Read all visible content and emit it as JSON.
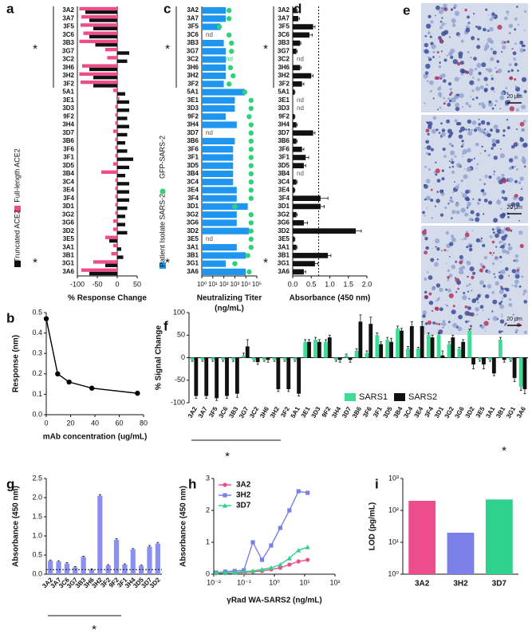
{
  "chart_data": [
    {
      "type": "bar",
      "panel": "a",
      "orientation": "horizontal",
      "categories": [
        "3A2",
        "3A7",
        "3F5",
        "3C6",
        "3B3",
        "3G7",
        "3C2",
        "3H6",
        "3H2",
        "3F2",
        "5A1",
        "3E1",
        "3D3",
        "9F2",
        "3H4",
        "3D7",
        "3B6",
        "3F6",
        "3F1",
        "3D5",
        "3B4",
        "3C4",
        "3E4",
        "3F4",
        "3D1",
        "3G2",
        "3G6",
        "3D2",
        "3E5",
        "3A1",
        "3B1",
        "3G1",
        "3A6"
      ],
      "series": [
        {
          "name": "Full-length ACE2",
          "color": "#ee4d8c",
          "values": [
            -95,
            -90,
            -92,
            -85,
            -95,
            -30,
            -25,
            -88,
            -95,
            -92,
            -10,
            5,
            -5,
            -5,
            -5,
            -10,
            -5,
            -5,
            -5,
            -10,
            -40,
            -5,
            -5,
            -5,
            -5,
            -5,
            -10,
            -10,
            -30,
            -10,
            -15,
            -60,
            -90
          ]
        },
        {
          "name": "Truncated ACE2",
          "color": "#111111",
          "values": [
            -80,
            -70,
            -60,
            -70,
            -55,
            30,
            25,
            -70,
            -60,
            -60,
            20,
            30,
            30,
            25,
            30,
            25,
            20,
            25,
            40,
            30,
            20,
            30,
            30,
            30,
            25,
            20,
            20,
            25,
            -20,
            10,
            15,
            -30,
            -70
          ]
        }
      ],
      "xlim": [
        -100,
        50
      ],
      "xticks": [
        -100,
        -50,
        0,
        50
      ],
      "x_label": "% Response Change",
      "legend": "left",
      "annotations": [
        "*",
        "*"
      ]
    },
    {
      "type": "bar",
      "panel": "c",
      "orientation": "horizontal",
      "x_log": true,
      "categories": [
        "3A2",
        "3A7",
        "3F5",
        "3C6",
        "3B3",
        "3G7",
        "3C2",
        "3H6",
        "3H2",
        "3F2",
        "5A1",
        "3E1",
        "3D3",
        "9F2",
        "3H4",
        "3D7",
        "3B6",
        "3F6",
        "3F1",
        "3D5",
        "3B4",
        "3C4",
        "3E4",
        "3F4",
        "3D1",
        "3G2",
        "3G6",
        "3D2",
        "3E5",
        "3A1",
        "3B1",
        "3G1",
        "3A6"
      ],
      "series": [
        {
          "name": "Patient Isolate SARS-2",
          "color": "#1e96f0",
          "values": [
            150,
            150,
            50,
            null,
            100,
            150,
            150,
            150,
            150,
            100,
            8000,
            1000,
            1000,
            150,
            1500,
            null,
            1000,
            700,
            700,
            700,
            700,
            700,
            1500,
            1500,
            15000,
            1500,
            1500,
            20000,
            null,
            1500,
            10000,
            150,
            10000
          ],
          "value_labels": [
            null,
            null,
            null,
            "nd",
            null,
            null,
            null,
            null,
            null,
            null,
            null,
            null,
            null,
            null,
            null,
            "nd",
            null,
            null,
            null,
            null,
            null,
            null,
            null,
            null,
            null,
            null,
            null,
            null,
            "nd",
            null,
            null,
            null,
            null
          ]
        },
        {
          "name": "GFP-SARS-2",
          "color": "#2ed27a",
          "marker": "dot",
          "values": [
            300,
            300,
            40,
            300,
            500,
            500,
            null,
            400,
            700,
            300,
            8000,
            30000,
            30000,
            20000,
            30000,
            30000,
            30000,
            30000,
            30000,
            30000,
            30000,
            30000,
            30000,
            30000,
            1000,
            30000,
            30000,
            30000,
            30000,
            30000,
            15000,
            1000,
            20000
          ],
          "value_labels": [
            null,
            null,
            null,
            null,
            null,
            null,
            "nd",
            null,
            null,
            null,
            null,
            null,
            null,
            null,
            null,
            null,
            null,
            null,
            null,
            null,
            null,
            null,
            null,
            null,
            null,
            null,
            null,
            null,
            null,
            null,
            null,
            null,
            null
          ]
        }
      ],
      "xlim": [
        1,
        100000
      ],
      "xticks": [
        {
          "value": 1,
          "label": "10⁰"
        },
        {
          "value": 10,
          "label": "10¹"
        },
        {
          "value": 100,
          "label": "10²"
        },
        {
          "value": 1000,
          "label": "10³"
        },
        {
          "value": 10000,
          "label": "10⁴"
        },
        {
          "value": 100000,
          "label": "10⁵"
        }
      ],
      "x_label": [
        "Neutralizing Titer",
        "(ng/mL)"
      ],
      "legend": "left",
      "annotations": [
        "*",
        "*"
      ]
    },
    {
      "type": "bar",
      "panel": "d",
      "orientation": "horizontal",
      "categories": [
        "3A2",
        "3A7",
        "3F5",
        "3C6",
        "3B3",
        "3G7",
        "3C2",
        "3H6",
        "3H2",
        "3F2",
        "5A1",
        "3E1",
        "3D3",
        "9F2",
        "3H4",
        "3D7",
        "3B6",
        "3F6",
        "3F1",
        "3D5",
        "3B4",
        "3C4",
        "3E4",
        "3F4",
        "3D1",
        "3G2",
        "3G6",
        "3D2",
        "3E5",
        "3A1",
        "3B1",
        "3G1",
        "3A6"
      ],
      "series": [
        {
          "color": "#111111",
          "values": [
            0.1,
            0.15,
            0.55,
            0.45,
            0.2,
            0.1,
            null,
            0.2,
            0.5,
            0.25,
            0.05,
            null,
            null,
            0.05,
            0.1,
            0.55,
            0.1,
            0.25,
            0.35,
            0.3,
            null,
            0.1,
            0.05,
            0.75,
            0.75,
            0.1,
            0.3,
            1.7,
            0.05,
            0.1,
            0.95,
            0.6,
            0.3
          ],
          "errors": [
            0.02,
            0.03,
            0.05,
            0.08,
            0.02,
            0.02,
            null,
            0.03,
            0.05,
            0.05,
            0.01,
            null,
            null,
            0.01,
            0.02,
            0.05,
            0.02,
            0.05,
            0.08,
            0.05,
            null,
            0.02,
            0.01,
            0.2,
            0.1,
            0.02,
            0.1,
            0.15,
            0.01,
            0.02,
            0.08,
            0.08,
            0.05
          ],
          "value_labels": [
            null,
            null,
            null,
            null,
            null,
            null,
            "nd",
            null,
            null,
            null,
            null,
            "nd",
            "nd",
            null,
            null,
            null,
            null,
            null,
            null,
            null,
            "nd",
            null,
            null,
            null,
            null,
            null,
            null,
            null,
            null,
            null,
            null,
            null,
            null
          ]
        }
      ],
      "xlim": [
        0,
        2
      ],
      "xticks": [
        {
          "value": 0,
          "label": "0.0"
        },
        {
          "value": 0.5,
          "label": "0.5"
        },
        {
          "value": 1,
          "label": "1.0"
        },
        {
          "value": 1.5,
          "label": "1.5"
        },
        {
          "value": 2,
          "label": "2.0"
        }
      ],
      "threshold": 0.7,
      "x_label": "Absorbance (450 nm)",
      "annotations": [
        "*",
        "*"
      ]
    },
    {
      "type": "image",
      "panel": "e",
      "scale_bars": [
        "20 μm",
        "20 μm",
        "20 μm"
      ]
    },
    {
      "type": "line",
      "panel": "b",
      "x": [
        0,
        9.375,
        18.75,
        37.5,
        75
      ],
      "values": [
        0.47,
        0.2,
        0.16,
        0.13,
        0.105
      ],
      "color": "#000000",
      "marker": "circle",
      "xlim": [
        0,
        80
      ],
      "xticks": [
        0,
        20,
        40,
        60,
        80
      ],
      "ylim": [
        0,
        0.5
      ],
      "yticks": [
        {
          "value": 0,
          "label": "0.0"
        },
        0.1,
        0.2,
        0.3,
        0.4,
        0.5
      ],
      "x_label": "mAb concentration (ug/mL)",
      "y_label": "Response (nm)"
    },
    {
      "type": "bar",
      "panel": "f",
      "categories": [
        "3A2",
        "3A7",
        "3F5",
        "3C6",
        "3B3",
        "3G7",
        "3C2",
        "3H6",
        "3H2",
        "3F2",
        "5A1",
        "3E1",
        "3D3",
        "9F2",
        "3H4",
        "3D7",
        "3B6",
        "3F6",
        "3F1",
        "3D5",
        "3B4",
        "3C4",
        "3E4",
        "3F4",
        "3D1",
        "3G2",
        "3G6",
        "3D2",
        "3E5",
        "3A1",
        "3B1",
        "3G1",
        "3A6"
      ],
      "series": [
        {
          "name": "SARS1",
          "color": "#3ddc97",
          "values": [
            -5,
            -5,
            -5,
            -5,
            -5,
            5,
            -5,
            -5,
            -5,
            -5,
            -5,
            35,
            40,
            35,
            -5,
            5,
            15,
            10,
            50,
            40,
            65,
            20,
            20,
            50,
            50,
            30,
            20,
            60,
            -5,
            -5,
            40,
            -5,
            -65
          ],
          "errors": [
            3,
            3,
            3,
            3,
            3,
            5,
            3,
            3,
            3,
            3,
            3,
            5,
            5,
            5,
            3,
            3,
            5,
            5,
            5,
            5,
            5,
            5,
            3,
            5,
            5,
            5,
            3,
            3,
            3,
            3,
            5,
            3,
            8
          ]
        },
        {
          "name": "SARS2",
          "color": "#111111",
          "values": [
            -85,
            -85,
            -90,
            -85,
            -80,
            25,
            -10,
            -5,
            -70,
            -70,
            -80,
            35,
            35,
            45,
            -5,
            -5,
            80,
            75,
            30,
            35,
            60,
            70,
            70,
            45,
            5,
            45,
            35,
            -15,
            -15,
            -35,
            -5,
            -45,
            -70
          ],
          "errors": [
            5,
            5,
            5,
            5,
            8,
            15,
            5,
            5,
            5,
            5,
            5,
            5,
            5,
            5,
            5,
            5,
            15,
            15,
            5,
            8,
            5,
            10,
            10,
            5,
            10,
            5,
            5,
            10,
            10,
            5,
            5,
            8,
            10
          ]
        }
      ],
      "ylim": [
        -100,
        100
      ],
      "yticks": [
        -100,
        -50,
        0,
        50,
        100
      ],
      "y_label": "% Signal Change",
      "legend": "lower center",
      "annotations": [
        "*",
        "*"
      ]
    },
    {
      "type": "bar",
      "panel": "g",
      "categories": [
        "3A2",
        "3A7",
        "3C6",
        "3G7",
        "3B3",
        "3H6",
        "3H2",
        "3F2",
        "9F2",
        "3F1",
        "3H4",
        "3D5",
        "3D7",
        "3D2"
      ],
      "values": [
        0.35,
        0.33,
        0.28,
        0.18,
        0.45,
        0.12,
        2.05,
        0.23,
        0.9,
        0.25,
        0.65,
        0.22,
        0.72,
        0.8
      ],
      "errors": [
        0.02,
        0.02,
        0.02,
        0.02,
        0.02,
        0.02,
        0.03,
        0.02,
        0.03,
        0.02,
        0.02,
        0.02,
        0.03,
        0.03
      ],
      "color": "#8b8ff0",
      "ylim": [
        0,
        2.5
      ],
      "yticks": [
        {
          "value": 0,
          "label": "0.0"
        },
        0.5,
        {
          "value": 1,
          "label": "1.0"
        },
        1.5,
        {
          "value": 2,
          "label": "2.0"
        },
        2.5
      ],
      "threshold": 0.12,
      "y_label": "Absorbance (450 nm)",
      "annotations": [
        "*"
      ]
    },
    {
      "type": "line",
      "panel": "h",
      "x_log": true,
      "x": [
        0.012,
        0.024,
        0.049,
        0.098,
        0.195,
        0.39,
        0.78,
        1.56,
        3.13,
        6.25,
        12.5
      ],
      "series": [
        {
          "name": "3A2",
          "color": "#ee4d8c",
          "marker": "circle",
          "values": [
            0.03,
            0.03,
            0.04,
            0.05,
            0.08,
            0.1,
            0.15,
            0.2,
            0.3,
            0.4,
            0.45
          ]
        },
        {
          "name": "3H2",
          "color": "#7b7fe8",
          "marker": "square",
          "values": [
            0.05,
            0.08,
            0.1,
            0.12,
            1.0,
            0.45,
            0.9,
            1.45,
            2.0,
            2.6,
            2.55
          ]
        },
        {
          "name": "3D7",
          "color": "#2fd28c",
          "marker": "triangle",
          "values": [
            0.05,
            0.05,
            0.05,
            0.08,
            0.1,
            0.15,
            0.2,
            0.3,
            0.5,
            0.75,
            0.85
          ]
        }
      ],
      "xlim": [
        0.01,
        100
      ],
      "xticks": [
        {
          "value": 0.01,
          "label": "10⁻²"
        },
        {
          "value": 0.1,
          "label": "10⁻¹"
        },
        {
          "value": 1,
          "label": "10⁰"
        },
        {
          "value": 10,
          "label": "10¹"
        },
        {
          "value": 100,
          "label": "10²"
        }
      ],
      "ylim": [
        0,
        3
      ],
      "yticks": [
        0,
        1,
        2,
        3
      ],
      "x_label": "γRad WA-SARS2 (ng/mL)",
      "y_label": "Absorbance (450 nm)",
      "legend": "upper left"
    },
    {
      "type": "bar",
      "panel": "i",
      "y_log": true,
      "categories": [
        "3A2",
        "3H2",
        "3D7"
      ],
      "values": [
        200,
        20,
        220
      ],
      "colors": [
        "#ee4d8c",
        "#7b7fe8",
        "#2fd28c"
      ],
      "ylim": [
        1,
        1000
      ],
      "yticks": [
        {
          "value": 1,
          "label": "10⁰"
        },
        {
          "value": 10,
          "label": "10¹"
        },
        {
          "value": 100,
          "label": "10²"
        },
        {
          "value": 1000,
          "label": "10³"
        }
      ],
      "y_label": "LOD (pg/mL)"
    }
  ]
}
